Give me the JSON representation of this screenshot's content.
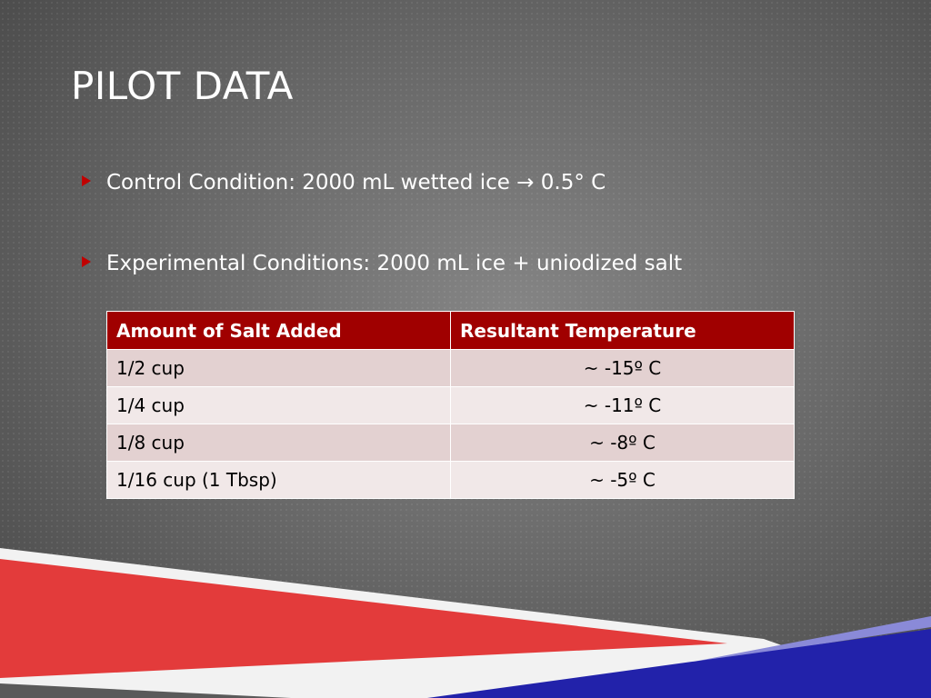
{
  "title": "PILOT DATA",
  "bullets": [
    "Control Condition: 2000 mL wetted ice → 0.5° C",
    "Experimental Conditions: 2000 mL ice + uniodized salt"
  ],
  "table": {
    "header": [
      "Amount of Salt Added",
      "Resultant Temperature"
    ],
    "rows": [
      [
        "1/2  cup",
        "~ -15º C"
      ],
      [
        "1/4  cup",
        "~ -11º C"
      ],
      [
        "1/8 cup",
        "~ -8º C"
      ],
      [
        "1/16 cup (1 Tbsp)",
        "~ -5º C"
      ]
    ]
  }
}
